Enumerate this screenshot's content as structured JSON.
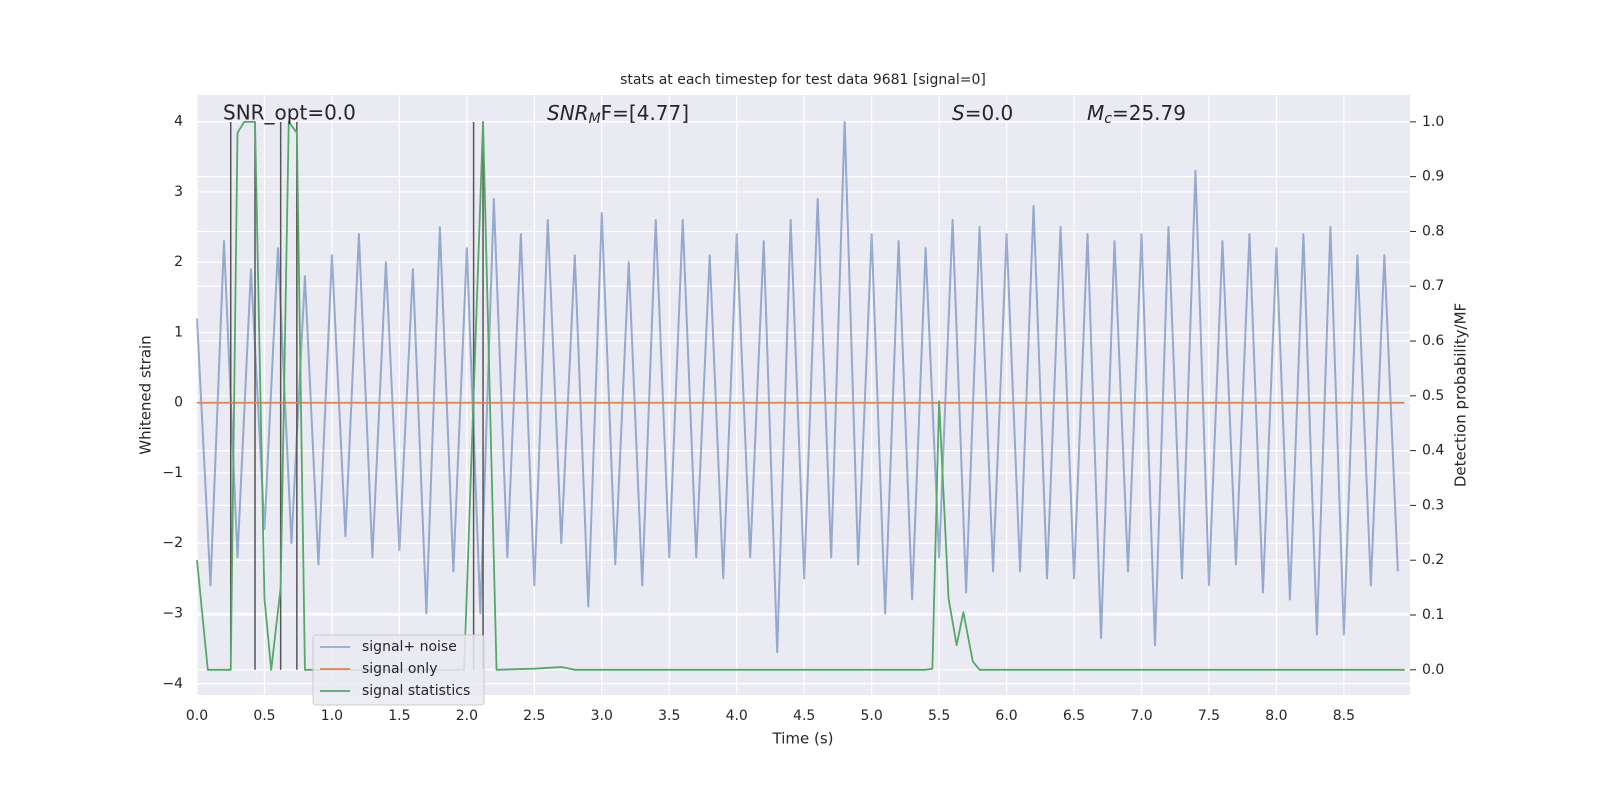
{
  "chart_data": {
    "type": "line",
    "title": "stats at each timestep for test data 9681 [signal=0]",
    "xlabel": "Time (s)",
    "ylabel": "Whitened strain",
    "y2label": "Detection probability/MF",
    "annotations": [
      {
        "text": "SNR_opt=0.0"
      },
      {
        "base": "SNR",
        "sub": "M",
        "rest": "F=[4.77]"
      },
      {
        "base": "S",
        "rest": "=0.0"
      },
      {
        "base": "M",
        "sub": "c",
        "rest": "=25.79"
      }
    ],
    "xlim": [
      0,
      8.99
    ],
    "ylim": [
      -4.16,
      4.38
    ],
    "y2lim": [
      -0.046,
      1.049
    ],
    "xticks": [
      {
        "value": 0,
        "label": "0.0"
      },
      {
        "value": 0.5,
        "label": "0.5"
      },
      {
        "value": 1,
        "label": "1.0"
      },
      {
        "value": 1.5,
        "label": "1.5"
      },
      {
        "value": 2,
        "label": "2.0"
      },
      {
        "value": 2.5,
        "label": "2.5"
      },
      {
        "value": 3,
        "label": "3.0"
      },
      {
        "value": 3.5,
        "label": "3.5"
      },
      {
        "value": 4,
        "label": "4.0"
      },
      {
        "value": 4.5,
        "label": "4.5"
      },
      {
        "value": 5,
        "label": "5.0"
      },
      {
        "value": 5.5,
        "label": "5.5"
      },
      {
        "value": 6,
        "label": "6.0"
      },
      {
        "value": 6.5,
        "label": "6.5"
      },
      {
        "value": 7,
        "label": "7.0"
      },
      {
        "value": 7.5,
        "label": "7.5"
      },
      {
        "value": 8,
        "label": "8.0"
      },
      {
        "value": 8.5,
        "label": "8.5"
      }
    ],
    "yticks": [
      {
        "value": -4,
        "label": "−4"
      },
      {
        "value": -3,
        "label": "−3"
      },
      {
        "value": -2,
        "label": "−2"
      },
      {
        "value": -1,
        "label": "−1"
      },
      0,
      1,
      2,
      3,
      4
    ],
    "y2ticks": [
      {
        "value": 0,
        "label": "0.0"
      },
      {
        "value": 0.1,
        "label": "0.1"
      },
      {
        "value": 0.2,
        "label": "0.2"
      },
      {
        "value": 0.3,
        "label": "0.3"
      },
      {
        "value": 0.4,
        "label": "0.4"
      },
      {
        "value": 0.5,
        "label": "0.5"
      },
      {
        "value": 0.6,
        "label": "0.6"
      },
      {
        "value": 0.7,
        "label": "0.7"
      },
      {
        "value": 0.8,
        "label": "0.8"
      },
      {
        "value": 0.9,
        "label": "0.9"
      },
      {
        "value": 1,
        "label": "1.0"
      }
    ],
    "grid": true,
    "legend": "lower left",
    "vlines": {
      "color": "#555555",
      "x": [
        0.25,
        0.43,
        0.62,
        0.74,
        2.05,
        2.12
      ]
    },
    "series": [
      {
        "name": "signal+ noise",
        "color": "#4c72b0",
        "x": [
          0,
          0.1,
          0.2,
          0.3,
          0.4,
          0.5,
          0.6,
          0.7,
          0.8,
          0.9,
          1,
          1.1,
          1.2,
          1.3,
          1.4,
          1.5,
          1.6,
          1.7,
          1.8,
          1.9,
          2,
          2.1,
          2.2,
          2.3,
          2.4,
          2.5,
          2.6,
          2.7,
          2.8,
          2.9,
          3,
          3.1,
          3.2,
          3.3,
          3.4,
          3.5,
          3.6,
          3.7,
          3.8,
          3.9,
          4,
          4.1,
          4.2,
          4.3,
          4.4,
          4.5,
          4.6,
          4.7,
          4.8,
          4.9,
          5,
          5.1,
          5.2,
          5.3,
          5.4,
          5.5,
          5.6,
          5.7,
          5.8,
          5.9,
          6,
          6.1,
          6.2,
          6.3,
          6.4,
          6.5,
          6.6,
          6.7,
          6.8,
          6.9,
          7,
          7.1,
          7.2,
          7.3,
          7.4,
          7.5,
          7.6,
          7.7,
          7.8,
          7.9,
          8,
          8.1,
          8.2,
          8.3,
          8.4,
          8.5,
          8.6,
          8.7,
          8.8,
          8.9
        ],
        "values": [
          1.2,
          -2.6,
          2.3,
          -2.2,
          1.9,
          -1.8,
          2.2,
          -2.0,
          1.8,
          -2.3,
          2.1,
          -1.9,
          2.4,
          -2.2,
          2.0,
          -2.1,
          1.9,
          -3.0,
          2.5,
          -2.4,
          2.2,
          -3.0,
          2.9,
          -2.2,
          2.4,
          -2.6,
          2.6,
          -2.0,
          2.1,
          -2.9,
          2.7,
          -2.3,
          2.0,
          -2.6,
          2.6,
          -2.2,
          2.6,
          -2.2,
          2.1,
          -2.5,
          2.4,
          -2.2,
          2.3,
          -3.55,
          2.6,
          -2.5,
          2.9,
          -2.2,
          4.0,
          -2.3,
          2.4,
          -3.0,
          2.3,
          -2.8,
          2.2,
          -2.2,
          2.6,
          -2.7,
          2.5,
          -2.4,
          2.4,
          -2.4,
          2.8,
          -2.5,
          2.5,
          -2.5,
          2.4,
          -3.35,
          2.3,
          -2.4,
          2.4,
          -3.45,
          2.5,
          -2.5,
          3.3,
          -2.6,
          2.3,
          -2.3,
          2.4,
          -2.7,
          2.2,
          -2.8,
          2.4,
          -3.3,
          2.5,
          -3.3,
          2.1,
          -2.6,
          2.1,
          -2.4
        ]
      },
      {
        "name": "signal only",
        "color": "#dd8452",
        "x": [
          0,
          8.95
        ],
        "values": [
          0,
          0
        ]
      },
      {
        "name": "signal statistics",
        "color": "#55a868",
        "axis": "y2",
        "x": [
          0,
          0.08,
          0.25,
          0.3,
          0.35,
          0.43,
          0.5,
          0.55,
          0.62,
          0.68,
          0.74,
          0.8,
          1.98,
          2.05,
          2.12,
          2.22,
          2.5,
          2.7,
          2.8,
          5.4,
          5.45,
          5.5,
          5.57,
          5.63,
          5.68,
          5.75,
          5.8,
          8.95
        ],
        "values": [
          0.2,
          0.0,
          0.0,
          0.98,
          1.0,
          1.0,
          0.13,
          0.0,
          0.15,
          1.0,
          0.98,
          0.0,
          0.0,
          0.5,
          1.0,
          0.0,
          0.002,
          0.005,
          0.0,
          0.0,
          0.002,
          0.49,
          0.13,
          0.045,
          0.105,
          0.015,
          0.0,
          0.0
        ]
      }
    ]
  }
}
